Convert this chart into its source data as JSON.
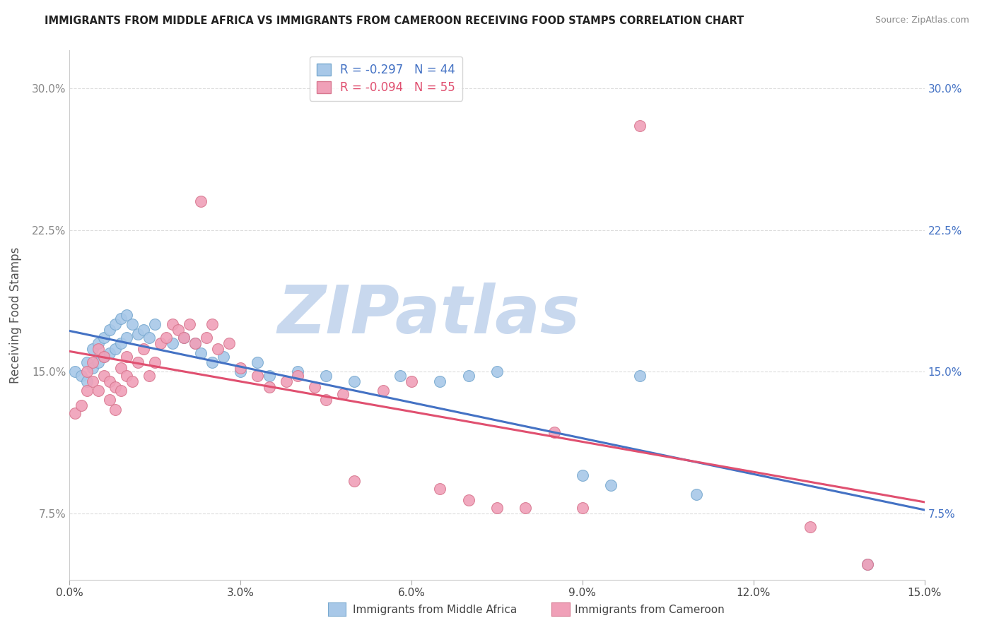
{
  "title": "IMMIGRANTS FROM MIDDLE AFRICA VS IMMIGRANTS FROM CAMEROON RECEIVING FOOD STAMPS CORRELATION CHART",
  "source": "Source: ZipAtlas.com",
  "ylabel": "Receiving Food Stamps",
  "xlim": [
    0.0,
    0.15
  ],
  "ylim": [
    0.04,
    0.32
  ],
  "xticks": [
    0.0,
    0.03,
    0.06,
    0.09,
    0.12,
    0.15
  ],
  "xtick_labels": [
    "0.0%",
    "3.0%",
    "6.0%",
    "9.0%",
    "12.0%",
    "15.0%"
  ],
  "yticks": [
    0.075,
    0.15,
    0.225,
    0.3
  ],
  "ytick_labels": [
    "7.5%",
    "15.0%",
    "22.5%",
    "30.0%"
  ],
  "series1_label": "Immigrants from Middle Africa",
  "series1_R": "-0.297",
  "series1_N": "44",
  "series1_color": "#A8C8E8",
  "series1_edge": "#7AAAD0",
  "series2_label": "Immigrants from Cameroon",
  "series2_R": "-0.094",
  "series2_N": "55",
  "series2_color": "#F0A0B8",
  "series2_edge": "#D87890",
  "line1_color": "#4472C4",
  "line2_color": "#E05070",
  "watermark_text": "ZIPatlas",
  "watermark_color": "#C8D8EE",
  "background_color": "#FFFFFF",
  "grid_color": "#DDDDDD",
  "series1_x": [
    0.001,
    0.002,
    0.003,
    0.003,
    0.004,
    0.004,
    0.005,
    0.005,
    0.006,
    0.006,
    0.007,
    0.007,
    0.008,
    0.008,
    0.009,
    0.009,
    0.01,
    0.01,
    0.011,
    0.012,
    0.013,
    0.014,
    0.015,
    0.018,
    0.02,
    0.022,
    0.023,
    0.025,
    0.027,
    0.03,
    0.033,
    0.035,
    0.04,
    0.045,
    0.05,
    0.058,
    0.065,
    0.07,
    0.075,
    0.09,
    0.095,
    0.1,
    0.11,
    0.14
  ],
  "series1_y": [
    0.15,
    0.148,
    0.155,
    0.145,
    0.162,
    0.152,
    0.165,
    0.155,
    0.168,
    0.158,
    0.172,
    0.16,
    0.175,
    0.162,
    0.178,
    0.165,
    0.18,
    0.168,
    0.175,
    0.17,
    0.172,
    0.168,
    0.175,
    0.165,
    0.168,
    0.165,
    0.16,
    0.155,
    0.158,
    0.15,
    0.155,
    0.148,
    0.15,
    0.148,
    0.145,
    0.148,
    0.145,
    0.148,
    0.15,
    0.095,
    0.09,
    0.148,
    0.085,
    0.048
  ],
  "series2_x": [
    0.001,
    0.002,
    0.003,
    0.003,
    0.004,
    0.004,
    0.005,
    0.005,
    0.006,
    0.006,
    0.007,
    0.007,
    0.008,
    0.008,
    0.009,
    0.009,
    0.01,
    0.01,
    0.011,
    0.012,
    0.013,
    0.014,
    0.015,
    0.016,
    0.017,
    0.018,
    0.019,
    0.02,
    0.021,
    0.022,
    0.023,
    0.024,
    0.025,
    0.026,
    0.028,
    0.03,
    0.033,
    0.035,
    0.038,
    0.04,
    0.043,
    0.045,
    0.048,
    0.05,
    0.055,
    0.06,
    0.065,
    0.07,
    0.075,
    0.08,
    0.085,
    0.09,
    0.1,
    0.13,
    0.14
  ],
  "series2_y": [
    0.128,
    0.132,
    0.14,
    0.15,
    0.145,
    0.155,
    0.14,
    0.162,
    0.148,
    0.158,
    0.135,
    0.145,
    0.13,
    0.142,
    0.14,
    0.152,
    0.148,
    0.158,
    0.145,
    0.155,
    0.162,
    0.148,
    0.155,
    0.165,
    0.168,
    0.175,
    0.172,
    0.168,
    0.175,
    0.165,
    0.24,
    0.168,
    0.175,
    0.162,
    0.165,
    0.152,
    0.148,
    0.142,
    0.145,
    0.148,
    0.142,
    0.135,
    0.138,
    0.092,
    0.14,
    0.145,
    0.088,
    0.082,
    0.078,
    0.078,
    0.118,
    0.078,
    0.28,
    0.068,
    0.048
  ]
}
